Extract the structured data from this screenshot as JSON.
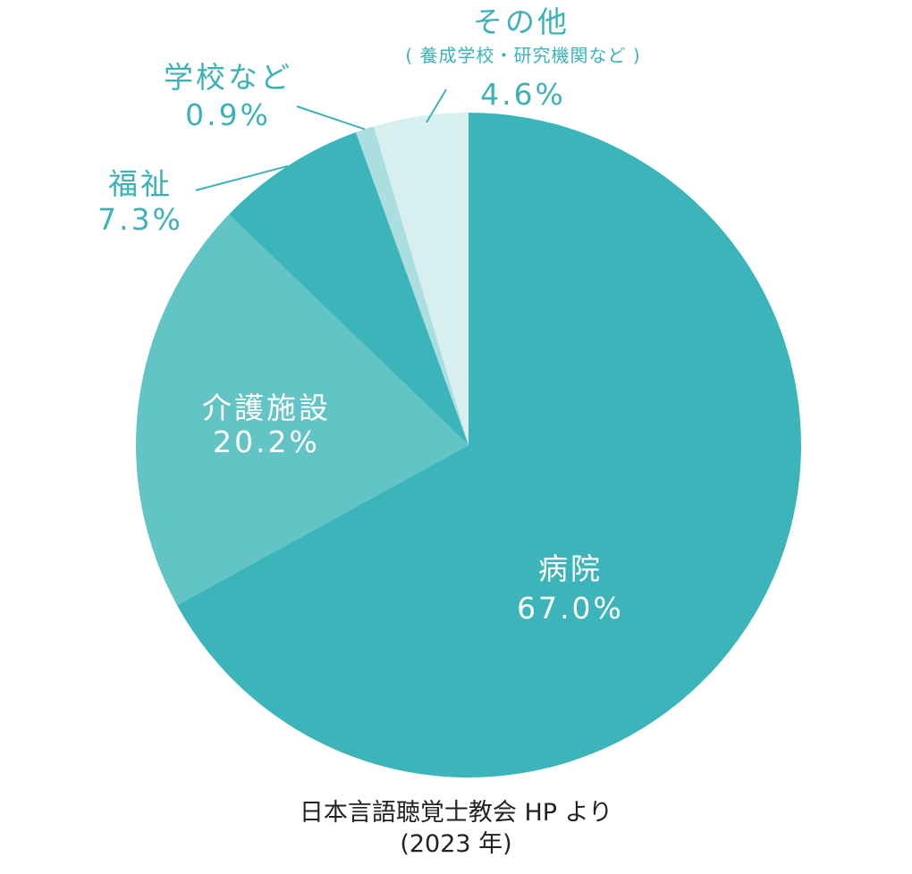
{
  "chart_data": {
    "type": "pie",
    "slices": [
      {
        "label": "病院",
        "value": 67.0,
        "value_label": "67.0%",
        "color": "#3bb5ba"
      },
      {
        "label": "介護施設",
        "value": 20.2,
        "value_label": "20.2%",
        "color": "#63c4c6"
      },
      {
        "label": "福祉",
        "value": 7.3,
        "value_label": "7.3%",
        "color": "#3bb5ba"
      },
      {
        "label": "学校など",
        "value": 0.9,
        "value_label": "0.9%",
        "color": "#abdedf"
      },
      {
        "label": "その他",
        "sublabel": "( 養成学校・研究機関など )",
        "value": 4.6,
        "value_label": "4.6%",
        "color": "#d8eff0"
      }
    ],
    "start_angle": "12 o'clock",
    "direction": "clockwise",
    "legend": "none"
  },
  "source": {
    "line1": "日本言語聴覚士教会 HP より",
    "line2": "(2023 年)"
  },
  "colors": {
    "label_outer": "#3bb2b7",
    "label_inner": "#ffffff",
    "leader_line": "#3bb2b7",
    "source_text": "#222222"
  }
}
